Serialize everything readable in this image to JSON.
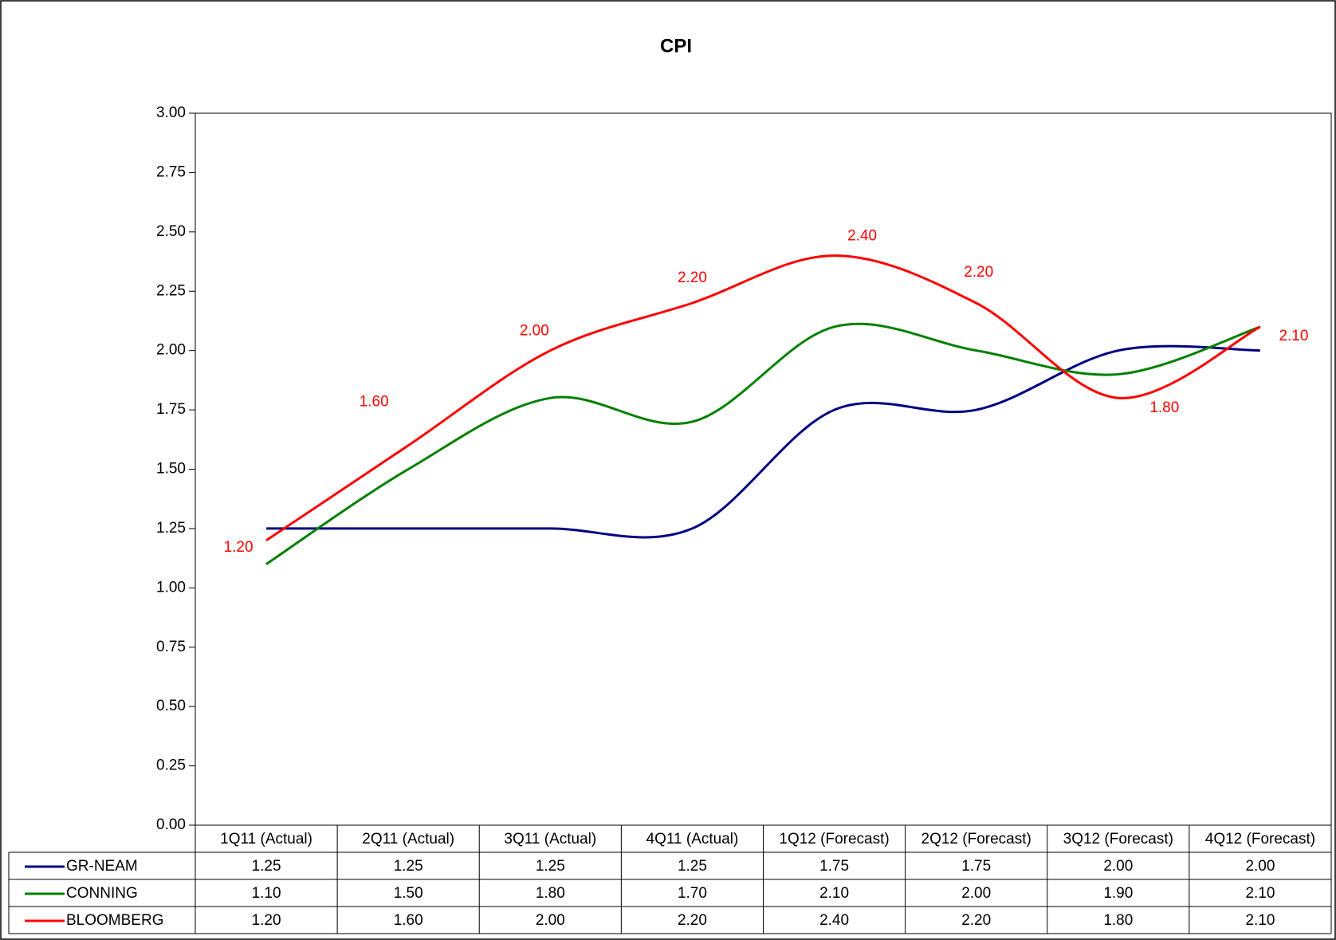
{
  "chart_data": {
    "type": "line",
    "title": "CPI",
    "categories": [
      "1Q11 (Actual)",
      "2Q11 (Actual)",
      "3Q11 (Actual)",
      "4Q11 (Actual)",
      "1Q12 (Forecast)",
      "2Q12 (Forecast)",
      "3Q12 (Forecast)",
      "4Q12 (Forecast)"
    ],
    "series": [
      {
        "name": "GR-NEAM",
        "color": "#000080",
        "values": [
          1.25,
          1.25,
          1.25,
          1.25,
          1.75,
          1.75,
          2.0,
          2.0
        ],
        "value_labels": [
          "1.25",
          "1.25",
          "1.25",
          "1.25",
          "1.75",
          "1.75",
          "2.00",
          "2.00"
        ]
      },
      {
        "name": "CONNING",
        "color": "#008000",
        "values": [
          1.1,
          1.5,
          1.8,
          1.7,
          2.1,
          2.0,
          1.9,
          2.1
        ],
        "value_labels": [
          "1.10",
          "1.50",
          "1.80",
          "1.70",
          "2.10",
          "2.00",
          "1.90",
          "2.10"
        ]
      },
      {
        "name": "BLOOMBERG",
        "color": "#ff0000",
        "values": [
          1.2,
          1.6,
          2.0,
          2.2,
          2.4,
          2.2,
          1.8,
          2.1
        ],
        "value_labels": [
          "1.20",
          "1.60",
          "2.00",
          "2.20",
          "2.40",
          "2.20",
          "1.80",
          "2.10"
        ],
        "data_labels": true
      }
    ],
    "ylim": [
      0,
      3
    ],
    "yticks": [
      {
        "value": 0,
        "label": "0.00"
      },
      {
        "value": 0.25,
        "label": "0.25"
      },
      {
        "value": 0.5,
        "label": "0.50"
      },
      {
        "value": 0.75,
        "label": "0.75"
      },
      {
        "value": 1,
        "label": "1.00"
      },
      {
        "value": 1.25,
        "label": "1.25"
      },
      {
        "value": 1.5,
        "label": "1.50"
      },
      {
        "value": 1.75,
        "label": "1.75"
      },
      {
        "value": 2,
        "label": "2.00"
      },
      {
        "value": 2.25,
        "label": "2.25"
      },
      {
        "value": 2.5,
        "label": "2.50"
      },
      {
        "value": 2.75,
        "label": "2.75"
      },
      {
        "value": 3,
        "label": "3.00"
      }
    ],
    "smooth": true,
    "data_table": true
  }
}
